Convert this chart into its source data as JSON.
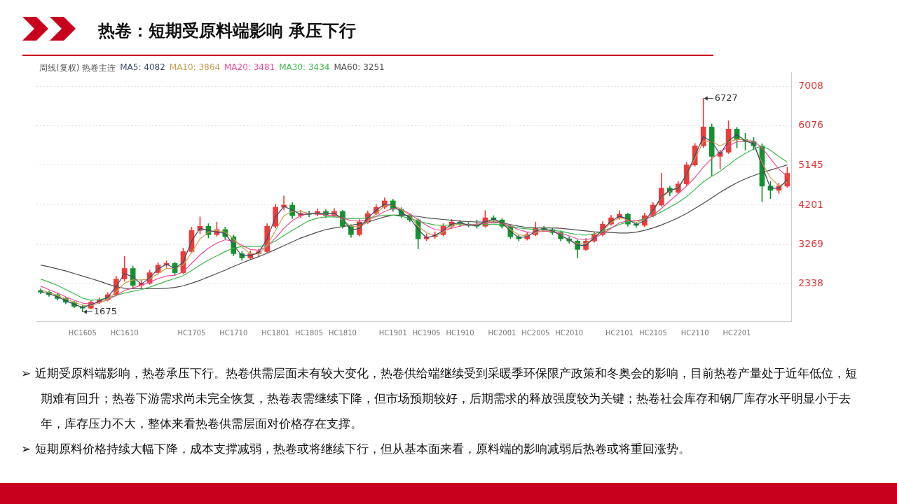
{
  "chart_data": {
    "type": "candlestick",
    "title": "热卷：短期受原料端影响 承压下行",
    "subtitle": "周线(复权)  热卷主连",
    "categories": [
      null,
      null,
      null,
      null,
      null,
      "HC1605",
      null,
      null,
      null,
      null,
      "HC1610",
      null,
      null,
      null,
      null,
      null,
      null,
      null,
      "HC1705",
      null,
      null,
      null,
      null,
      "HC1710",
      null,
      null,
      null,
      null,
      "HC1801",
      null,
      null,
      null,
      "HC1805",
      null,
      null,
      null,
      "HC1810",
      null,
      null,
      null,
      null,
      null,
      "HC1901",
      null,
      null,
      null,
      "HC1905",
      null,
      null,
      null,
      "HC1910",
      null,
      null,
      null,
      null,
      "HC2001",
      null,
      null,
      null,
      "HC2005",
      null,
      null,
      null,
      "HC2010",
      null,
      null,
      null,
      null,
      null,
      "HC2101",
      null,
      null,
      null,
      "HC2105",
      null,
      null,
      null,
      null,
      "HC2110",
      null,
      null,
      null,
      null,
      "HC2201",
      null,
      null,
      null,
      null,
      null,
      null
    ],
    "ylim": [
      1450,
      7340
    ],
    "yticks": [
      2338,
      3269,
      4201,
      5145,
      6076,
      7008
    ],
    "grid": "y",
    "legend": "top left",
    "series": [
      {
        "ohlc": [
          [
            2180,
            2220,
            2100,
            2140
          ],
          [
            2140,
            2170,
            2040,
            2080
          ],
          [
            2080,
            2110,
            1950,
            1990
          ],
          [
            1990,
            2020,
            1860,
            1900
          ],
          [
            1900,
            1930,
            1770,
            1800
          ],
          [
            1800,
            1840,
            1675,
            1760
          ],
          [
            1760,
            1940,
            1740,
            1900
          ],
          [
            1900,
            2010,
            1870,
            1960
          ],
          [
            1960,
            2130,
            1930,
            2080
          ],
          [
            2080,
            2520,
            2050,
            2450
          ],
          [
            2450,
            2984,
            2400,
            2700
          ],
          [
            2700,
            2760,
            2250,
            2300
          ],
          [
            2300,
            2420,
            2240,
            2350
          ],
          [
            2350,
            2660,
            2320,
            2600
          ],
          [
            2600,
            2840,
            2560,
            2780
          ],
          [
            2780,
            2880,
            2720,
            2820
          ],
          [
            2820,
            2850,
            2540,
            2600
          ],
          [
            2600,
            3180,
            2570,
            3100
          ],
          [
            3100,
            3680,
            3060,
            3600
          ],
          [
            3600,
            3919,
            3520,
            3700
          ],
          [
            3700,
            3760,
            3420,
            3500
          ],
          [
            3500,
            3800,
            3460,
            3620
          ],
          [
            3620,
            3680,
            3400,
            3450
          ],
          [
            3450,
            3490,
            3000,
            3050
          ],
          [
            3050,
            3110,
            2894,
            2950
          ],
          [
            2950,
            3120,
            2920,
            3050
          ],
          [
            3050,
            3160,
            3000,
            3100
          ],
          [
            3100,
            3760,
            3080,
            3700
          ],
          [
            3700,
            4220,
            3660,
            4150
          ],
          [
            4150,
            4416,
            4080,
            4200
          ],
          [
            4200,
            4260,
            3880,
            3950
          ],
          [
            3950,
            4080,
            3900,
            4000
          ],
          [
            4000,
            4060,
            3920,
            3980
          ],
          [
            3980,
            4110,
            3940,
            4050
          ],
          [
            4050,
            4090,
            3900,
            3950
          ],
          [
            3950,
            4120,
            3920,
            4050
          ],
          [
            4050,
            4080,
            3650,
            3700
          ],
          [
            3700,
            3740,
            3436,
            3500
          ],
          [
            3500,
            3860,
            3470,
            3800
          ],
          [
            3800,
            4060,
            3760,
            4000
          ],
          [
            4000,
            4210,
            3970,
            4150
          ],
          [
            4150,
            4371,
            4110,
            4300
          ],
          [
            4300,
            4340,
            4050,
            4100
          ],
          [
            4100,
            4140,
            3900,
            3950
          ],
          [
            3950,
            3990,
            3800,
            3850
          ],
          [
            3850,
            3880,
            3165,
            3400
          ],
          [
            3400,
            3520,
            3360,
            3450
          ],
          [
            3450,
            3570,
            3410,
            3500
          ],
          [
            3500,
            3760,
            3470,
            3700
          ],
          [
            3700,
            3860,
            3660,
            3800
          ],
          [
            3800,
            3840,
            3700,
            3750
          ],
          [
            3750,
            3790,
            3680,
            3720
          ],
          [
            3720,
            3850,
            3650,
            3700
          ],
          [
            3700,
            4070,
            3670,
            3900
          ],
          [
            3900,
            3950,
            3800,
            3850
          ],
          [
            3850,
            3880,
            3650,
            3700
          ],
          [
            3700,
            3730,
            3400,
            3450
          ],
          [
            3450,
            3490,
            3350,
            3400
          ],
          [
            3400,
            3560,
            3370,
            3500
          ],
          [
            3500,
            3800,
            3470,
            3650
          ],
          [
            3650,
            3700,
            3570,
            3620
          ],
          [
            3620,
            3660,
            3500,
            3550
          ],
          [
            3550,
            3590,
            3350,
            3400
          ],
          [
            3400,
            3450,
            3300,
            3350
          ],
          [
            3350,
            3380,
            2954,
            3150
          ],
          [
            3150,
            3410,
            3120,
            3350
          ],
          [
            3350,
            3560,
            3320,
            3500
          ],
          [
            3500,
            3810,
            3470,
            3750
          ],
          [
            3750,
            3960,
            3720,
            3900
          ],
          [
            3900,
            4070,
            3860,
            3980
          ],
          [
            3980,
            4010,
            3700,
            3750
          ],
          [
            3750,
            3790,
            3670,
            3720
          ],
          [
            3720,
            4010,
            3690,
            3950
          ],
          [
            3950,
            4260,
            3920,
            4200
          ],
          [
            4200,
            4958,
            4170,
            4600
          ],
          [
            4600,
            4650,
            4420,
            4500
          ],
          [
            4500,
            4760,
            4470,
            4700
          ],
          [
            4700,
            5210,
            4670,
            5150
          ],
          [
            5150,
            5660,
            5120,
            5600
          ],
          [
            5600,
            6727,
            5560,
            6050
          ],
          [
            6050,
            6120,
            4900,
            5350
          ],
          [
            5350,
            5500,
            5050,
            5450
          ],
          [
            5450,
            6194,
            5420,
            6000
          ],
          [
            6000,
            6040,
            5550,
            5750
          ],
          [
            5750,
            5900,
            5500,
            5700
          ],
          [
            5700,
            5800,
            5500,
            5600
          ],
          [
            5600,
            5650,
            4280,
            4650
          ],
          [
            4650,
            4760,
            4350,
            4550
          ],
          [
            4550,
            4720,
            4480,
            4650
          ],
          [
            4650,
            5100,
            4620,
            4950
          ]
        ],
        "colors": [
          "#13922e",
          "#13922e",
          "#13922e",
          "#13922e",
          "#13922e",
          "#13922e",
          "#eb3c3c",
          "#eb3c3c",
          "#eb3c3c",
          "#eb3c3c",
          "#eb3c3c",
          "#13922e",
          "#eb3c3c",
          "#eb3c3c",
          "#eb3c3c",
          "#eb3c3c",
          "#13922e",
          "#eb3c3c",
          "#eb3c3c",
          "#eb3c3c",
          "#13922e",
          "#eb3c3c",
          "#13922e",
          "#13922e",
          "#13922e",
          "#eb3c3c",
          "#eb3c3c",
          "#eb3c3c",
          "#eb3c3c",
          "#eb3c3c",
          "#13922e",
          "#eb3c3c",
          "#13922e",
          "#eb3c3c",
          "#13922e",
          "#eb3c3c",
          "#13922e",
          "#13922e",
          "#eb3c3c",
          "#eb3c3c",
          "#eb3c3c",
          "#eb3c3c",
          "#13922e",
          "#13922e",
          "#13922e",
          "#13922e",
          "#eb3c3c",
          "#eb3c3c",
          "#eb3c3c",
          "#eb3c3c",
          "#13922e",
          "#13922e",
          "#13922e",
          "#eb3c3c",
          "#13922e",
          "#13922e",
          "#13922e",
          "#13922e",
          "#eb3c3c",
          "#eb3c3c",
          "#13922e",
          "#13922e",
          "#13922e",
          "#13922e",
          "#13922e",
          "#eb3c3c",
          "#eb3c3c",
          "#eb3c3c",
          "#eb3c3c",
          "#eb3c3c",
          "#13922e",
          "#13922e",
          "#eb3c3c",
          "#eb3c3c",
          "#eb3c3c",
          "#13922e",
          "#eb3c3c",
          "#eb3c3c",
          "#eb3c3c",
          "#eb3c3c",
          "#13922e",
          "#eb3c3c",
          "#eb3c3c",
          "#13922e",
          "#13922e",
          "#13922e",
          "#13922e",
          "#13922e",
          "#eb3c3c",
          "#eb3c3c"
        ]
      },
      {
        "type": "line",
        "name": "MA5: 4082",
        "color": "#3b4a6b",
        "values": [
          2150,
          2100,
          2030,
          1940,
          1850,
          1780,
          1840,
          1930,
          2020,
          2270,
          2580,
          2500,
          2330,
          2480,
          2690,
          2800,
          2700,
          2850,
          3350,
          3650,
          3600,
          3560,
          3530,
          3250,
          3000,
          3000,
          3080,
          3400,
          3920,
          4170,
          4080,
          3980,
          3990,
          4010,
          4000,
          4000,
          3880,
          3600,
          3650,
          3900,
          4080,
          4220,
          4200,
          4030,
          3900,
          3620,
          3430,
          3480,
          3600,
          3750,
          3780,
          3730,
          3710,
          3800,
          3870,
          3780,
          3580,
          3430,
          3450,
          3580,
          3640,
          3590,
          3480,
          3380,
          3250,
          3250,
          3420,
          3620,
          3820,
          3940,
          3870,
          3740,
          3830,
          4070,
          4400,
          4550,
          4600,
          4920,
          5370,
          5820,
          5700,
          5400,
          5720,
          5870,
          5720,
          5650,
          5130,
          4600,
          4600,
          4800
        ]
      },
      {
        "type": "line",
        "name": "MA10: 3864",
        "color": "#c9a04e",
        "values": [
          2200,
          2130,
          2060,
          1980,
          1900,
          1830,
          1820,
          1880,
          1970,
          2150,
          2350,
          2430,
          2430,
          2450,
          2580,
          2700,
          2700,
          2780,
          3080,
          3400,
          3560,
          3600,
          3560,
          3400,
          3200,
          3050,
          3040,
          3250,
          3600,
          3950,
          4050,
          4050,
          4000,
          4000,
          4000,
          3990,
          3850,
          3700,
          3680,
          3800,
          4000,
          4180,
          4200,
          4100,
          3950,
          3700,
          3550,
          3470,
          3560,
          3700,
          3760,
          3740,
          3730,
          3790,
          3830,
          3780,
          3620,
          3500,
          3470,
          3550,
          3600,
          3590,
          3490,
          3380,
          3280,
          3290,
          3420,
          3600,
          3780,
          3900,
          3850,
          3790,
          3850,
          4050,
          4380,
          4530,
          4620,
          4920,
          5300,
          5700,
          5700,
          5600,
          5700,
          5750,
          5750,
          5650,
          5200,
          4850,
          4650,
          4750
        ]
      },
      {
        "type": "line",
        "name": "MA20: 3481",
        "color": "#e84f95",
        "values": [
          2280,
          2200,
          2120,
          2030,
          1950,
          1880,
          1860,
          1900,
          1960,
          2060,
          2180,
          2240,
          2300,
          2380,
          2460,
          2520,
          2540,
          2620,
          2820,
          3020,
          3180,
          3300,
          3380,
          3350,
          3250,
          3150,
          3130,
          3220,
          3420,
          3650,
          3830,
          3950,
          4000,
          3990,
          3960,
          3950,
          3900,
          3830,
          3820,
          3850,
          3930,
          4050,
          4120,
          4100,
          4000,
          3850,
          3720,
          3620,
          3600,
          3650,
          3700,
          3740,
          3750,
          3770,
          3790,
          3770,
          3700,
          3620,
          3560,
          3560,
          3580,
          3580,
          3540,
          3470,
          3400,
          3380,
          3420,
          3520,
          3650,
          3780,
          3830,
          3830,
          3850,
          3950,
          4120,
          4300,
          4470,
          4650,
          4850,
          5100,
          5300,
          5450,
          5600,
          5700,
          5720,
          5720,
          5550,
          5300,
          5050,
          4880
        ]
      },
      {
        "type": "line",
        "name": "MA30: 3434",
        "color": "#3cb94a",
        "values": [
          2450,
          2380,
          2300,
          2200,
          2100,
          2000,
          1950,
          1960,
          2000,
          2060,
          2120,
          2160,
          2200,
          2260,
          2330,
          2400,
          2460,
          2530,
          2650,
          2780,
          2900,
          3000,
          3100,
          3180,
          3220,
          3230,
          3220,
          3250,
          3350,
          3480,
          3600,
          3720,
          3830,
          3890,
          3920,
          3920,
          3900,
          3880,
          3880,
          3900,
          3930,
          3960,
          3960,
          3930,
          3890,
          3820,
          3770,
          3730,
          3720,
          3730,
          3740,
          3740,
          3730,
          3740,
          3750,
          3740,
          3700,
          3660,
          3640,
          3620,
          3610,
          3600,
          3580,
          3540,
          3500,
          3490,
          3520,
          3580,
          3660,
          3740,
          3800,
          3830,
          3870,
          3940,
          4040,
          4150,
          4260,
          4400,
          4570,
          4750,
          4880,
          5000,
          5150,
          5300,
          5420,
          5530,
          5600,
          5500,
          5350,
          5220
        ]
      },
      {
        "type": "line",
        "name": "MA60: 3251",
        "color": "#4d4d4d",
        "values": [
          2780,
          2740,
          2690,
          2640,
          2580,
          2520,
          2460,
          2400,
          2330,
          2270,
          2230,
          2220,
          2220,
          2220,
          2220,
          2230,
          2250,
          2290,
          2350,
          2420,
          2500,
          2580,
          2660,
          2750,
          2830,
          2910,
          2980,
          3060,
          3150,
          3240,
          3330,
          3420,
          3490,
          3560,
          3620,
          3660,
          3690,
          3720,
          3760,
          3800,
          3860,
          3920,
          3960,
          3960,
          3950,
          3930,
          3900,
          3880,
          3860,
          3840,
          3820,
          3810,
          3800,
          3800,
          3800,
          3780,
          3740,
          3700,
          3670,
          3660,
          3660,
          3660,
          3650,
          3630,
          3610,
          3590,
          3570,
          3560,
          3550,
          3540,
          3540,
          3560,
          3600,
          3660,
          3730,
          3810,
          3900,
          4000,
          4120,
          4240,
          4370,
          4500,
          4620,
          4730,
          4820,
          4900,
          4970,
          5030,
          5090,
          5150
        ]
      }
    ],
    "annotations": [
      "6727",
      "1675",
      "➢ 近期受原料端影响，热卷承压下行。热卷供需层面未有较大变化，热卷供给端继续受到采暖季环保限产政策和冬奥会的影响，目前热卷产量处于近年低位，短期难有回升；热卷下游需求尚未完全恢复，热卷表需继续下降，但市场预期较好，后期需求的释放强度较为关键；热卷社会库存和钢厂库存水平明显小于去年，库存压力不大，整体来看热卷供需层面对价格存在支撑。",
      "➢ 短期原料价格持续大幅下降，成本支撑减弱，热卷或将继续下行，但从基本面来看，原料端的影响减弱后热卷或将重回涨势。"
    ]
  }
}
